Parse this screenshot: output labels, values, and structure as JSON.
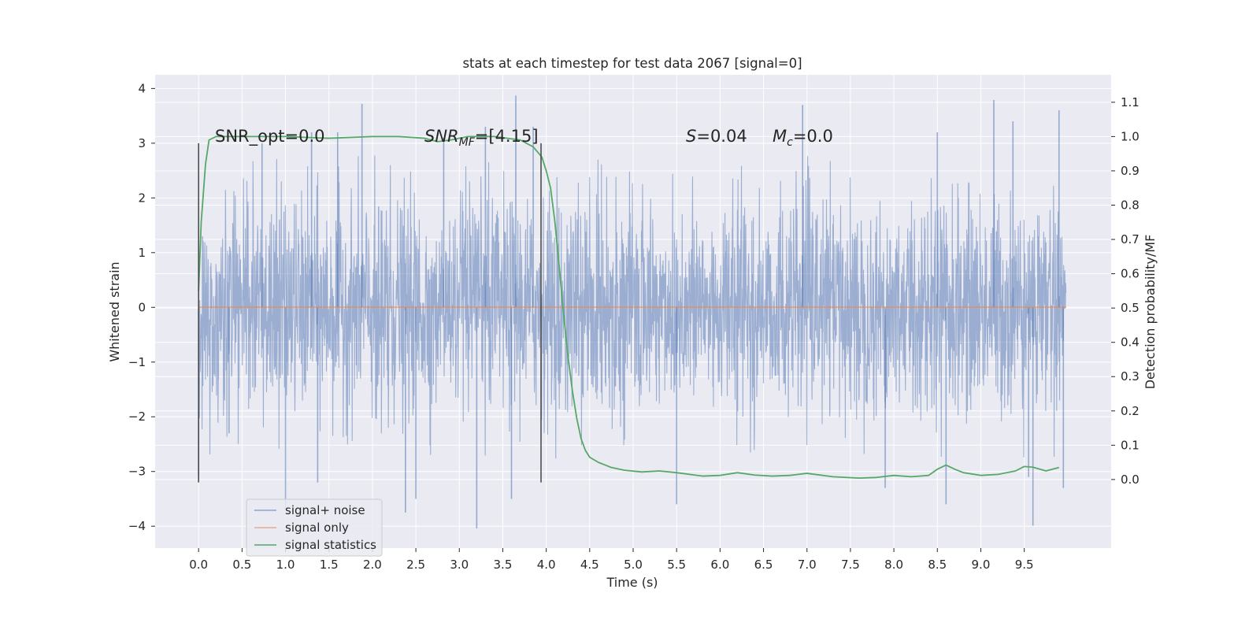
{
  "chart_data": {
    "type": "line",
    "title": "stats at each timestep for test data 2067 [signal=0]",
    "xlabel": "Time (s)",
    "ylabel_left": "Whitened strain",
    "ylabel_right": "Detection probability/MF",
    "xlim": [
      -0.5,
      10.5
    ],
    "ylim_left": [
      -4.4,
      4.25
    ],
    "ylim_right": [
      -0.2,
      1.18
    ],
    "xticks": [
      "0.0",
      "0.5",
      "1.0",
      "1.5",
      "2.0",
      "2.5",
      "3.0",
      "3.5",
      "4.0",
      "4.5",
      "5.0",
      "5.5",
      "6.0",
      "6.5",
      "7.0",
      "7.5",
      "8.0",
      "8.5",
      "9.0",
      "9.5"
    ],
    "yticks_left": [
      "4",
      "3",
      "2",
      "1",
      "0",
      "−1",
      "−2",
      "−3",
      "−4"
    ],
    "yticks_right": [
      "1.1",
      "1.0",
      "0.9",
      "0.8",
      "0.7",
      "0.6",
      "0.5",
      "0.4",
      "0.3",
      "0.2",
      "0.1",
      "0.0"
    ],
    "grid": true,
    "background": "#eaeaf2",
    "legend_position": "lower-left",
    "annotations": {
      "snr_opt": "SNR_opt=0.0",
      "snr_mf_sym": "SNR",
      "snr_mf_sub": "MF",
      "snr_mf_rest": "=[4.15]",
      "s_sym": "S",
      "s_rest": "=0.04",
      "mc_sym": "M",
      "mc_sub": "c",
      "mc_rest": "=0.0"
    },
    "vertical_markers_x": [
      0.0,
      3.94
    ],
    "series": [
      {
        "name": "signal+ noise",
        "color": "#4c72b0",
        "axis": "left",
        "style": "dense noise trace",
        "x_range": [
          0.0,
          9.98
        ],
        "typical_abs_max": 2.8,
        "peaks": [
          {
            "x": 0.0,
            "y": -3.1
          },
          {
            "x": 0.35,
            "y": -2.3
          },
          {
            "x": 0.73,
            "y": 3.0
          },
          {
            "x": 1.0,
            "y": -3.7
          },
          {
            "x": 1.3,
            "y": 3.2
          },
          {
            "x": 1.37,
            "y": -3.2
          },
          {
            "x": 1.6,
            "y": 3.2
          },
          {
            "x": 1.88,
            "y": 3.72
          },
          {
            "x": 2.38,
            "y": -3.75
          },
          {
            "x": 2.5,
            "y": -3.5
          },
          {
            "x": 2.82,
            "y": 3.1
          },
          {
            "x": 3.2,
            "y": -4.04
          },
          {
            "x": 3.3,
            "y": 3.3
          },
          {
            "x": 3.6,
            "y": -3.5
          },
          {
            "x": 3.65,
            "y": 3.87
          },
          {
            "x": 3.85,
            "y": 3.3
          },
          {
            "x": 5.5,
            "y": -3.6
          },
          {
            "x": 6.95,
            "y": 3.7
          },
          {
            "x": 7.9,
            "y": -3.3
          },
          {
            "x": 8.5,
            "y": 3.2
          },
          {
            "x": 8.6,
            "y": -3.6
          },
          {
            "x": 9.15,
            "y": 3.79
          },
          {
            "x": 9.37,
            "y": 3.4
          },
          {
            "x": 9.55,
            "y": -3.1
          },
          {
            "x": 9.6,
            "y": -3.99
          },
          {
            "x": 9.9,
            "y": 3.6
          },
          {
            "x": 9.95,
            "y": -3.3
          }
        ]
      },
      {
        "name": "signal only",
        "color": "#dd8452",
        "axis": "left",
        "x": [
          0.0,
          9.98
        ],
        "y": [
          0.0,
          0.0
        ]
      },
      {
        "name": "signal statistics",
        "color": "#55a868",
        "axis": "right",
        "x": [
          0.0,
          0.03,
          0.08,
          0.12,
          0.2,
          0.3,
          0.5,
          1.0,
          1.5,
          2.0,
          2.3,
          2.6,
          2.75,
          2.9,
          3.1,
          3.4,
          3.7,
          3.85,
          3.95,
          4.0,
          4.05,
          4.1,
          4.15,
          4.2,
          4.25,
          4.3,
          4.35,
          4.4,
          4.45,
          4.5,
          4.6,
          4.75,
          4.9,
          5.1,
          5.3,
          5.5,
          5.8,
          6.0,
          6.2,
          6.4,
          6.6,
          6.8,
          7.0,
          7.3,
          7.6,
          7.8,
          8.0,
          8.2,
          8.4,
          8.5,
          8.6,
          8.7,
          8.8,
          9.0,
          9.2,
          9.4,
          9.5,
          9.6,
          9.75,
          9.9
        ],
        "y": [
          0.55,
          0.75,
          0.92,
          0.99,
          1.0,
          1.0,
          1.0,
          1.0,
          0.995,
          1.0,
          1.0,
          0.995,
          0.985,
          0.99,
          1.0,
          1.0,
          0.99,
          0.97,
          0.94,
          0.9,
          0.85,
          0.75,
          0.62,
          0.48,
          0.36,
          0.26,
          0.18,
          0.12,
          0.085,
          0.065,
          0.05,
          0.035,
          0.027,
          0.022,
          0.025,
          0.02,
          0.01,
          0.012,
          0.02,
          0.013,
          0.01,
          0.012,
          0.018,
          0.008,
          0.004,
          0.006,
          0.012,
          0.008,
          0.012,
          0.03,
          0.042,
          0.03,
          0.02,
          0.012,
          0.015,
          0.025,
          0.038,
          0.036,
          0.025,
          0.035
        ]
      }
    ]
  }
}
